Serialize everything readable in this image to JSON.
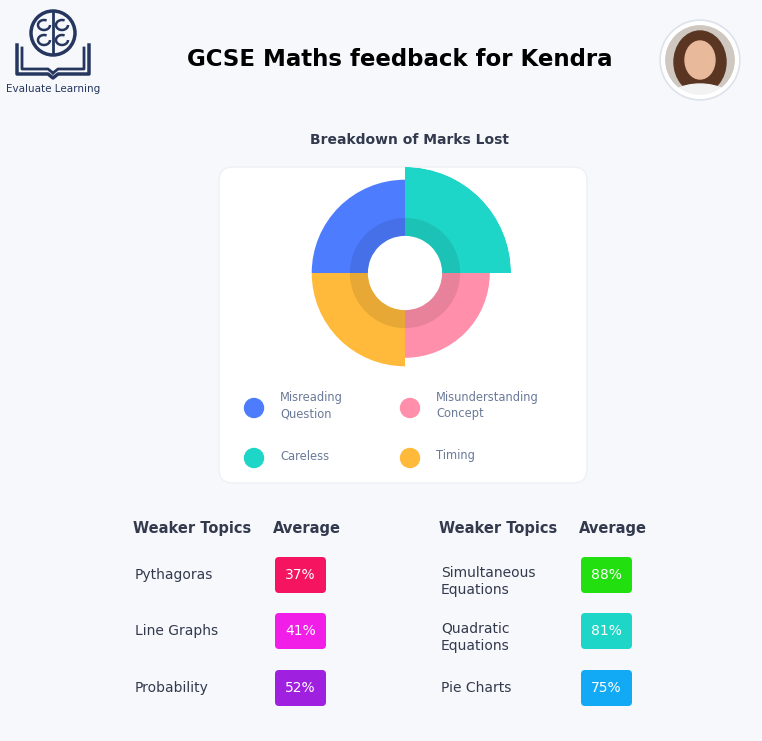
{
  "header": {
    "logo_text": "Evaluate Learning",
    "title": "GCSE Maths feedback for Kendra"
  },
  "chart_data": {
    "type": "polar_area",
    "title": "Breakdown of Marks Lost",
    "categories": [
      "Misreading\nQuestion",
      "Misunderstanding\nConcept",
      "Careless",
      "Timing"
    ],
    "values": [
      88,
      80,
      100,
      88
    ],
    "colors": [
      "#4d7cfe",
      "#ff8fab",
      "#1ed6c8",
      "#ffb93b"
    ]
  },
  "tables": [
    {
      "columns": [
        "Weaker Topics",
        "Average"
      ],
      "rows": [
        {
          "topic": "Pythagoras",
          "average": "37%",
          "color": "#f5145f"
        },
        {
          "topic": "Line Graphs",
          "average": "41%",
          "color": "#f01ee6"
        },
        {
          "topic": "Probability",
          "average": "52%",
          "color": "#a020e0"
        }
      ]
    },
    {
      "columns": [
        "Weaker Topics",
        "Average"
      ],
      "rows": [
        {
          "topic": "Simultaneous\nEquations",
          "average": "88%",
          "color": "#22e010"
        },
        {
          "topic": "Quadratic\nEquations",
          "average": "81%",
          "color": "#1ed6c8"
        },
        {
          "topic": "Pie Charts",
          "average": "75%",
          "color": "#12aaf5"
        }
      ]
    }
  ]
}
